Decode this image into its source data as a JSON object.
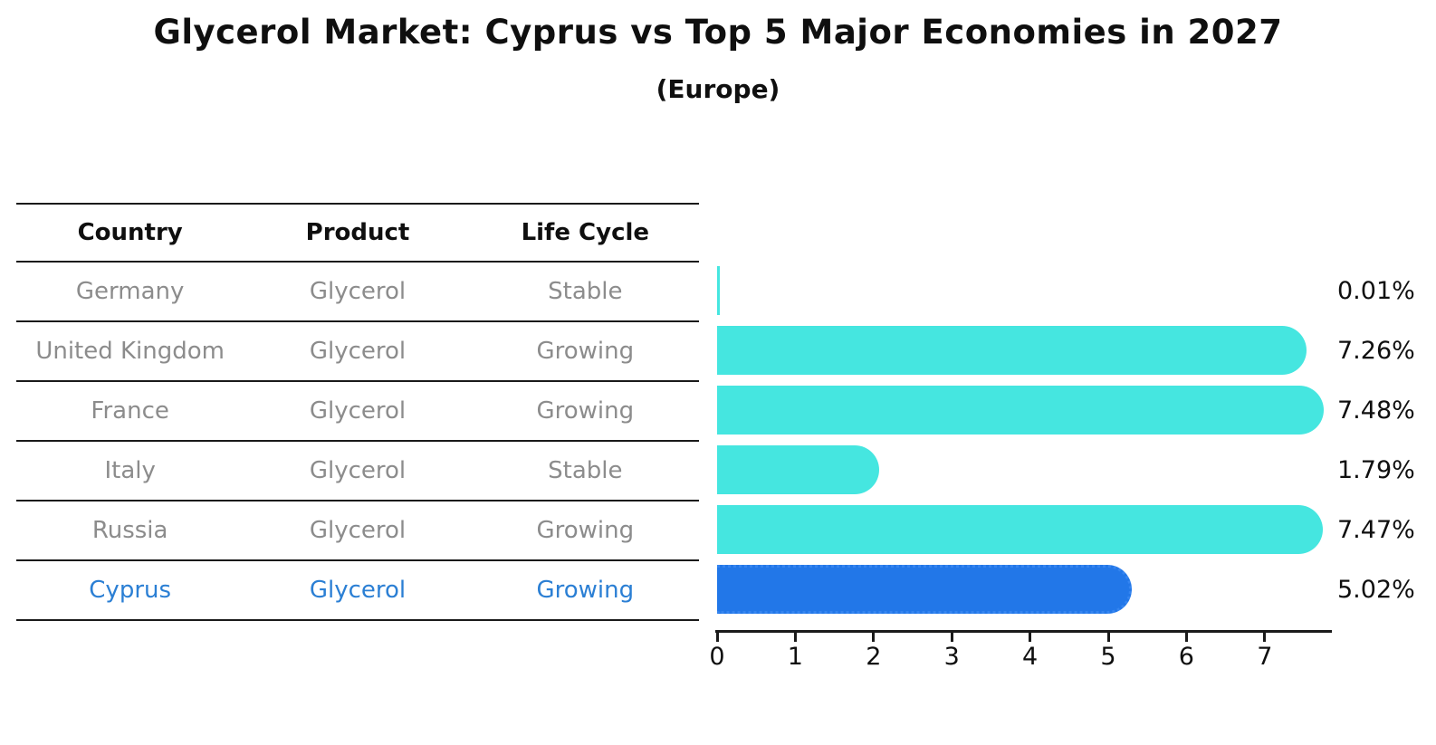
{
  "title": "Glycerol Market: Cyprus vs Top 5 Major Economies in 2027",
  "subtitle": "(Europe)",
  "table": {
    "headers": [
      "Country",
      "Product",
      "Life Cycle"
    ],
    "rows": [
      {
        "country": "Germany",
        "product": "Glycerol",
        "life_cycle": "Stable"
      },
      {
        "country": "United Kingdom",
        "product": "Glycerol",
        "life_cycle": "Growing"
      },
      {
        "country": "France",
        "product": "Glycerol",
        "life_cycle": "Growing"
      },
      {
        "country": "Italy",
        "product": "Glycerol",
        "life_cycle": "Stable"
      },
      {
        "country": "Russia",
        "product": "Glycerol",
        "life_cycle": "Growing"
      },
      {
        "country": "Cyprus",
        "product": "Glycerol",
        "life_cycle": "Growing"
      }
    ]
  },
  "chart_data": {
    "type": "bar",
    "orientation": "horizontal",
    "title": "Glycerol Market: Cyprus vs Top 5 Major Economies in 2027",
    "subtitle": "(Europe)",
    "categories": [
      "Germany",
      "United Kingdom",
      "France",
      "Italy",
      "Russia",
      "Cyprus"
    ],
    "values": [
      0.01,
      7.26,
      7.48,
      1.79,
      7.47,
      5.02
    ],
    "labels": [
      "0.01%",
      "7.26%",
      "7.48%",
      "1.79%",
      "7.47%",
      "5.02%"
    ],
    "x_ticks": [
      0,
      1,
      2,
      3,
      4,
      5,
      6,
      7
    ],
    "xlim": [
      0,
      7.85
    ],
    "grid": false,
    "legend": false,
    "bar_color": "#45E6E0",
    "highlight_color": "#2277E8",
    "highlight_index": 5,
    "highlight_label": "Cyprus"
  },
  "colors": {
    "text_dark": "#0f0f0f",
    "text_gray": "#8c8c8c",
    "text_blue": "#2b7fd4",
    "line": "#1a1a1a"
  }
}
